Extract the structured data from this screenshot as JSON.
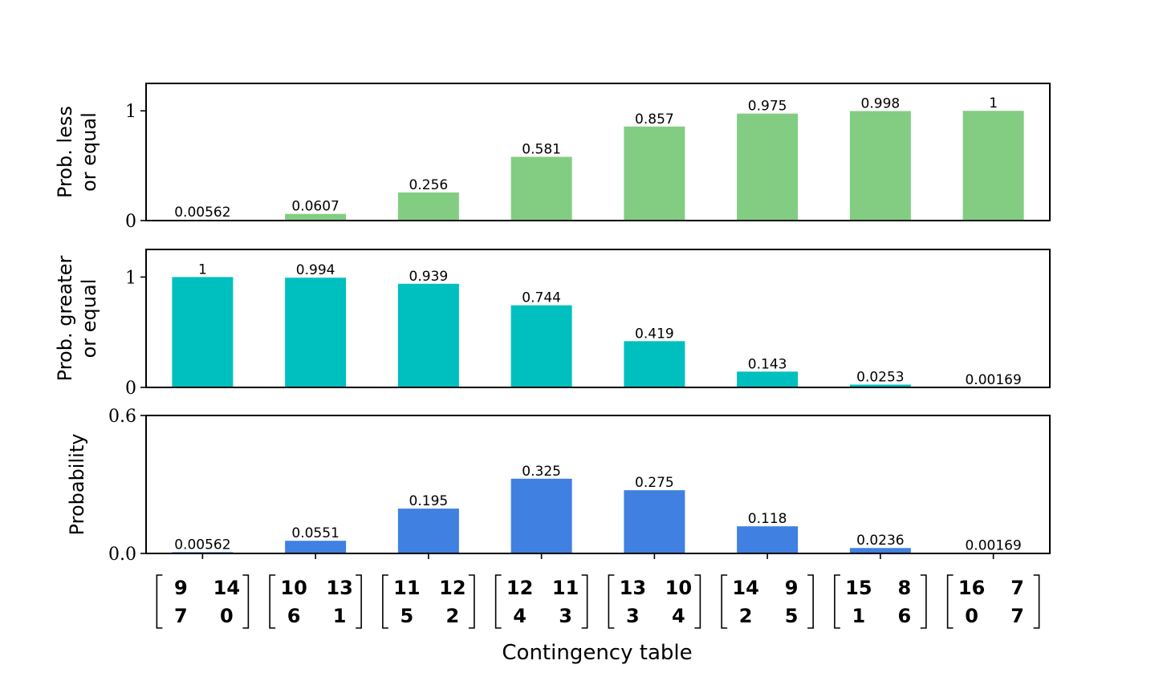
{
  "chart_data": [
    {
      "type": "bar",
      "panel": "top",
      "ylabel": [
        "Prob. less",
        "or equal"
      ],
      "ylim": [
        0,
        1.25
      ],
      "yticks": [
        {
          "value": 0,
          "label": "0"
        },
        {
          "value": 1,
          "label": "1"
        }
      ],
      "color": "#82cd82",
      "values": [
        0.00562,
        0.0607,
        0.256,
        0.581,
        0.857,
        0.975,
        0.998,
        1
      ],
      "value_labels": [
        "0.00562",
        "0.0607",
        "0.256",
        "0.581",
        "0.857",
        "0.975",
        "0.998",
        "1"
      ]
    },
    {
      "type": "bar",
      "panel": "middle",
      "ylabel": [
        "Prob. greater",
        "or equal"
      ],
      "ylim": [
        0,
        1.25
      ],
      "yticks": [
        {
          "value": 0,
          "label": "0"
        },
        {
          "value": 1,
          "label": "1"
        }
      ],
      "color": "#00bfbf",
      "values": [
        1,
        0.994,
        0.939,
        0.744,
        0.419,
        0.143,
        0.0253,
        0.00169
      ],
      "value_labels": [
        "1",
        "0.994",
        "0.939",
        "0.744",
        "0.419",
        "0.143",
        "0.0253",
        "0.00169"
      ]
    },
    {
      "type": "bar",
      "panel": "bottom",
      "ylabel": [
        "Probability"
      ],
      "ylim": [
        0,
        0.6
      ],
      "yticks": [
        {
          "value": 0,
          "label": "0.0"
        },
        {
          "value": 0.6,
          "label": "0.6"
        }
      ],
      "color": "#4080e0",
      "values": [
        0.00562,
        0.0551,
        0.195,
        0.325,
        0.275,
        0.118,
        0.0236,
        0.00169
      ],
      "value_labels": [
        "0.00562",
        "0.0551",
        "0.195",
        "0.325",
        "0.275",
        "0.118",
        "0.0236",
        "0.00169"
      ]
    }
  ],
  "categories": [
    [
      [
        "9",
        "14"
      ],
      [
        "7",
        "0"
      ]
    ],
    [
      [
        "10",
        "13"
      ],
      [
        "6",
        "1"
      ]
    ],
    [
      [
        "11",
        "12"
      ],
      [
        "5",
        "2"
      ]
    ],
    [
      [
        "12",
        "11"
      ],
      [
        "4",
        "3"
      ]
    ],
    [
      [
        "13",
        "10"
      ],
      [
        "3",
        "4"
      ]
    ],
    [
      [
        "14",
        "9"
      ],
      [
        "2",
        "5"
      ]
    ],
    [
      [
        "15",
        "8"
      ],
      [
        "1",
        "6"
      ]
    ],
    [
      [
        "16",
        "7"
      ],
      [
        "0",
        "7"
      ]
    ]
  ],
  "xlabel": "Contingency table"
}
